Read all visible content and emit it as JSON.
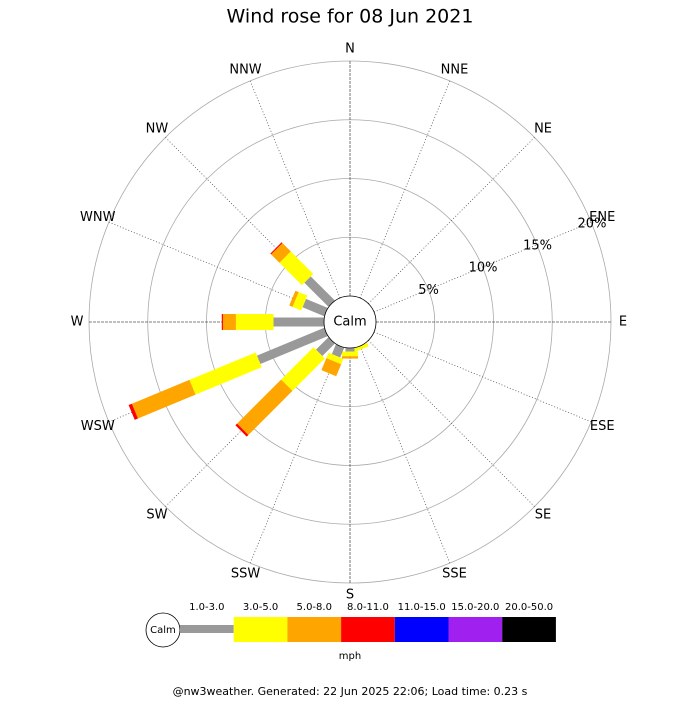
{
  "chart_data": {
    "type": "windrose",
    "title": "Wind rose for 08 Jun 2021",
    "categories": [
      "N",
      "NNE",
      "NE",
      "ENE",
      "E",
      "ESE",
      "SE",
      "SSE",
      "S",
      "SSW",
      "SW",
      "WSW",
      "W",
      "WNW",
      "NW",
      "NNW"
    ],
    "series": [
      {
        "name": "1.0-3.0",
        "color": "#999999",
        "values": [
          0,
          0,
          0,
          0,
          0,
          0,
          0,
          0,
          0.3,
          0.9,
          1.5,
          6.2,
          4.3,
          2.0,
          2.9,
          0
        ]
      },
      {
        "name": "3.0-5.0",
        "color": "#ffff00",
        "values": [
          0,
          0,
          0,
          0,
          0,
          0,
          0,
          0.3,
          0.4,
          0.5,
          3.9,
          6.1,
          3.2,
          0.8,
          2.7,
          0
        ]
      },
      {
        "name": "5.0-8.0",
        "color": "#ffa500",
        "values": [
          0,
          0,
          0,
          0,
          0,
          0,
          0,
          0,
          0.2,
          1.1,
          5.3,
          5.3,
          1.1,
          0.3,
          1.0,
          0
        ]
      },
      {
        "name": "8.0-11.0",
        "color": "#ff0000",
        "values": [
          0,
          0,
          0,
          0,
          0,
          0,
          0,
          0,
          0,
          0,
          0.2,
          0.3,
          0.1,
          0,
          0.1,
          0
        ]
      },
      {
        "name": "11.0-15.0",
        "color": "#0000ff",
        "values": [
          0,
          0,
          0,
          0,
          0,
          0,
          0,
          0,
          0,
          0,
          0,
          0,
          0,
          0,
          0,
          0
        ]
      },
      {
        "name": "15.0-20.0",
        "color": "#a020f0",
        "values": [
          0,
          0,
          0,
          0,
          0,
          0,
          0,
          0,
          0,
          0,
          0,
          0,
          0,
          0,
          0,
          0
        ]
      },
      {
        "name": "20.0-50.0",
        "color": "#000000",
        "values": [
          0,
          0,
          0,
          0,
          0,
          0,
          0,
          0,
          0,
          0,
          0,
          0,
          0,
          0,
          0,
          0
        ]
      }
    ],
    "rlim": [
      0,
      20
    ],
    "rticks": [
      {
        "value": 5,
        "label": "5%"
      },
      {
        "value": 10,
        "label": "10%"
      },
      {
        "value": 15,
        "label": "15%"
      },
      {
        "value": 20,
        "label": "20%"
      }
    ],
    "calm_label": "Calm",
    "legend_calm_label": "Calm",
    "unit": "mph",
    "footer": "@nw3weather. Generated: 22 Jun 2025 22:06; Load time: 0.23 s"
  }
}
